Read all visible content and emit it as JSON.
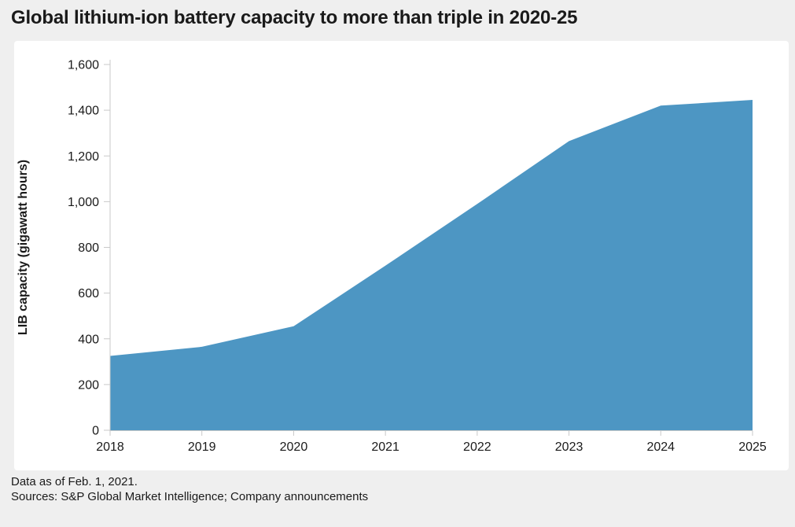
{
  "title": "Global lithium-ion battery capacity to more than triple in 2020-25",
  "page": {
    "background": "#efefef",
    "card_background": "#ffffff",
    "text_color": "#1a1a1a"
  },
  "chart_data": {
    "type": "area",
    "title": "Global lithium-ion battery capacity to more than triple in 2020-25",
    "x": [
      "2018",
      "2019",
      "2020",
      "2021",
      "2022",
      "2023",
      "2024",
      "2025"
    ],
    "series": [
      {
        "name": "LIB capacity",
        "values": [
          325,
          365,
          455,
          720,
          990,
          1265,
          1420,
          1445
        ]
      }
    ],
    "xlabel": "",
    "ylabel": "LIB capacity (gigawatt hours)",
    "ylim": [
      0,
      1600
    ],
    "ytick_interval": 200,
    "ytick_labels": [
      "0",
      "200",
      "400",
      "600",
      "800",
      "1,000",
      "1,200",
      "1,400",
      "1,600"
    ],
    "grid": false,
    "legend": "none",
    "area_color": "#4d96c3",
    "axis_color": "#c9c9c9"
  },
  "footer": {
    "line1": "Data as of Feb. 1, 2021.",
    "line2": "Sources: S&P Global Market Intelligence; Company announcements"
  }
}
